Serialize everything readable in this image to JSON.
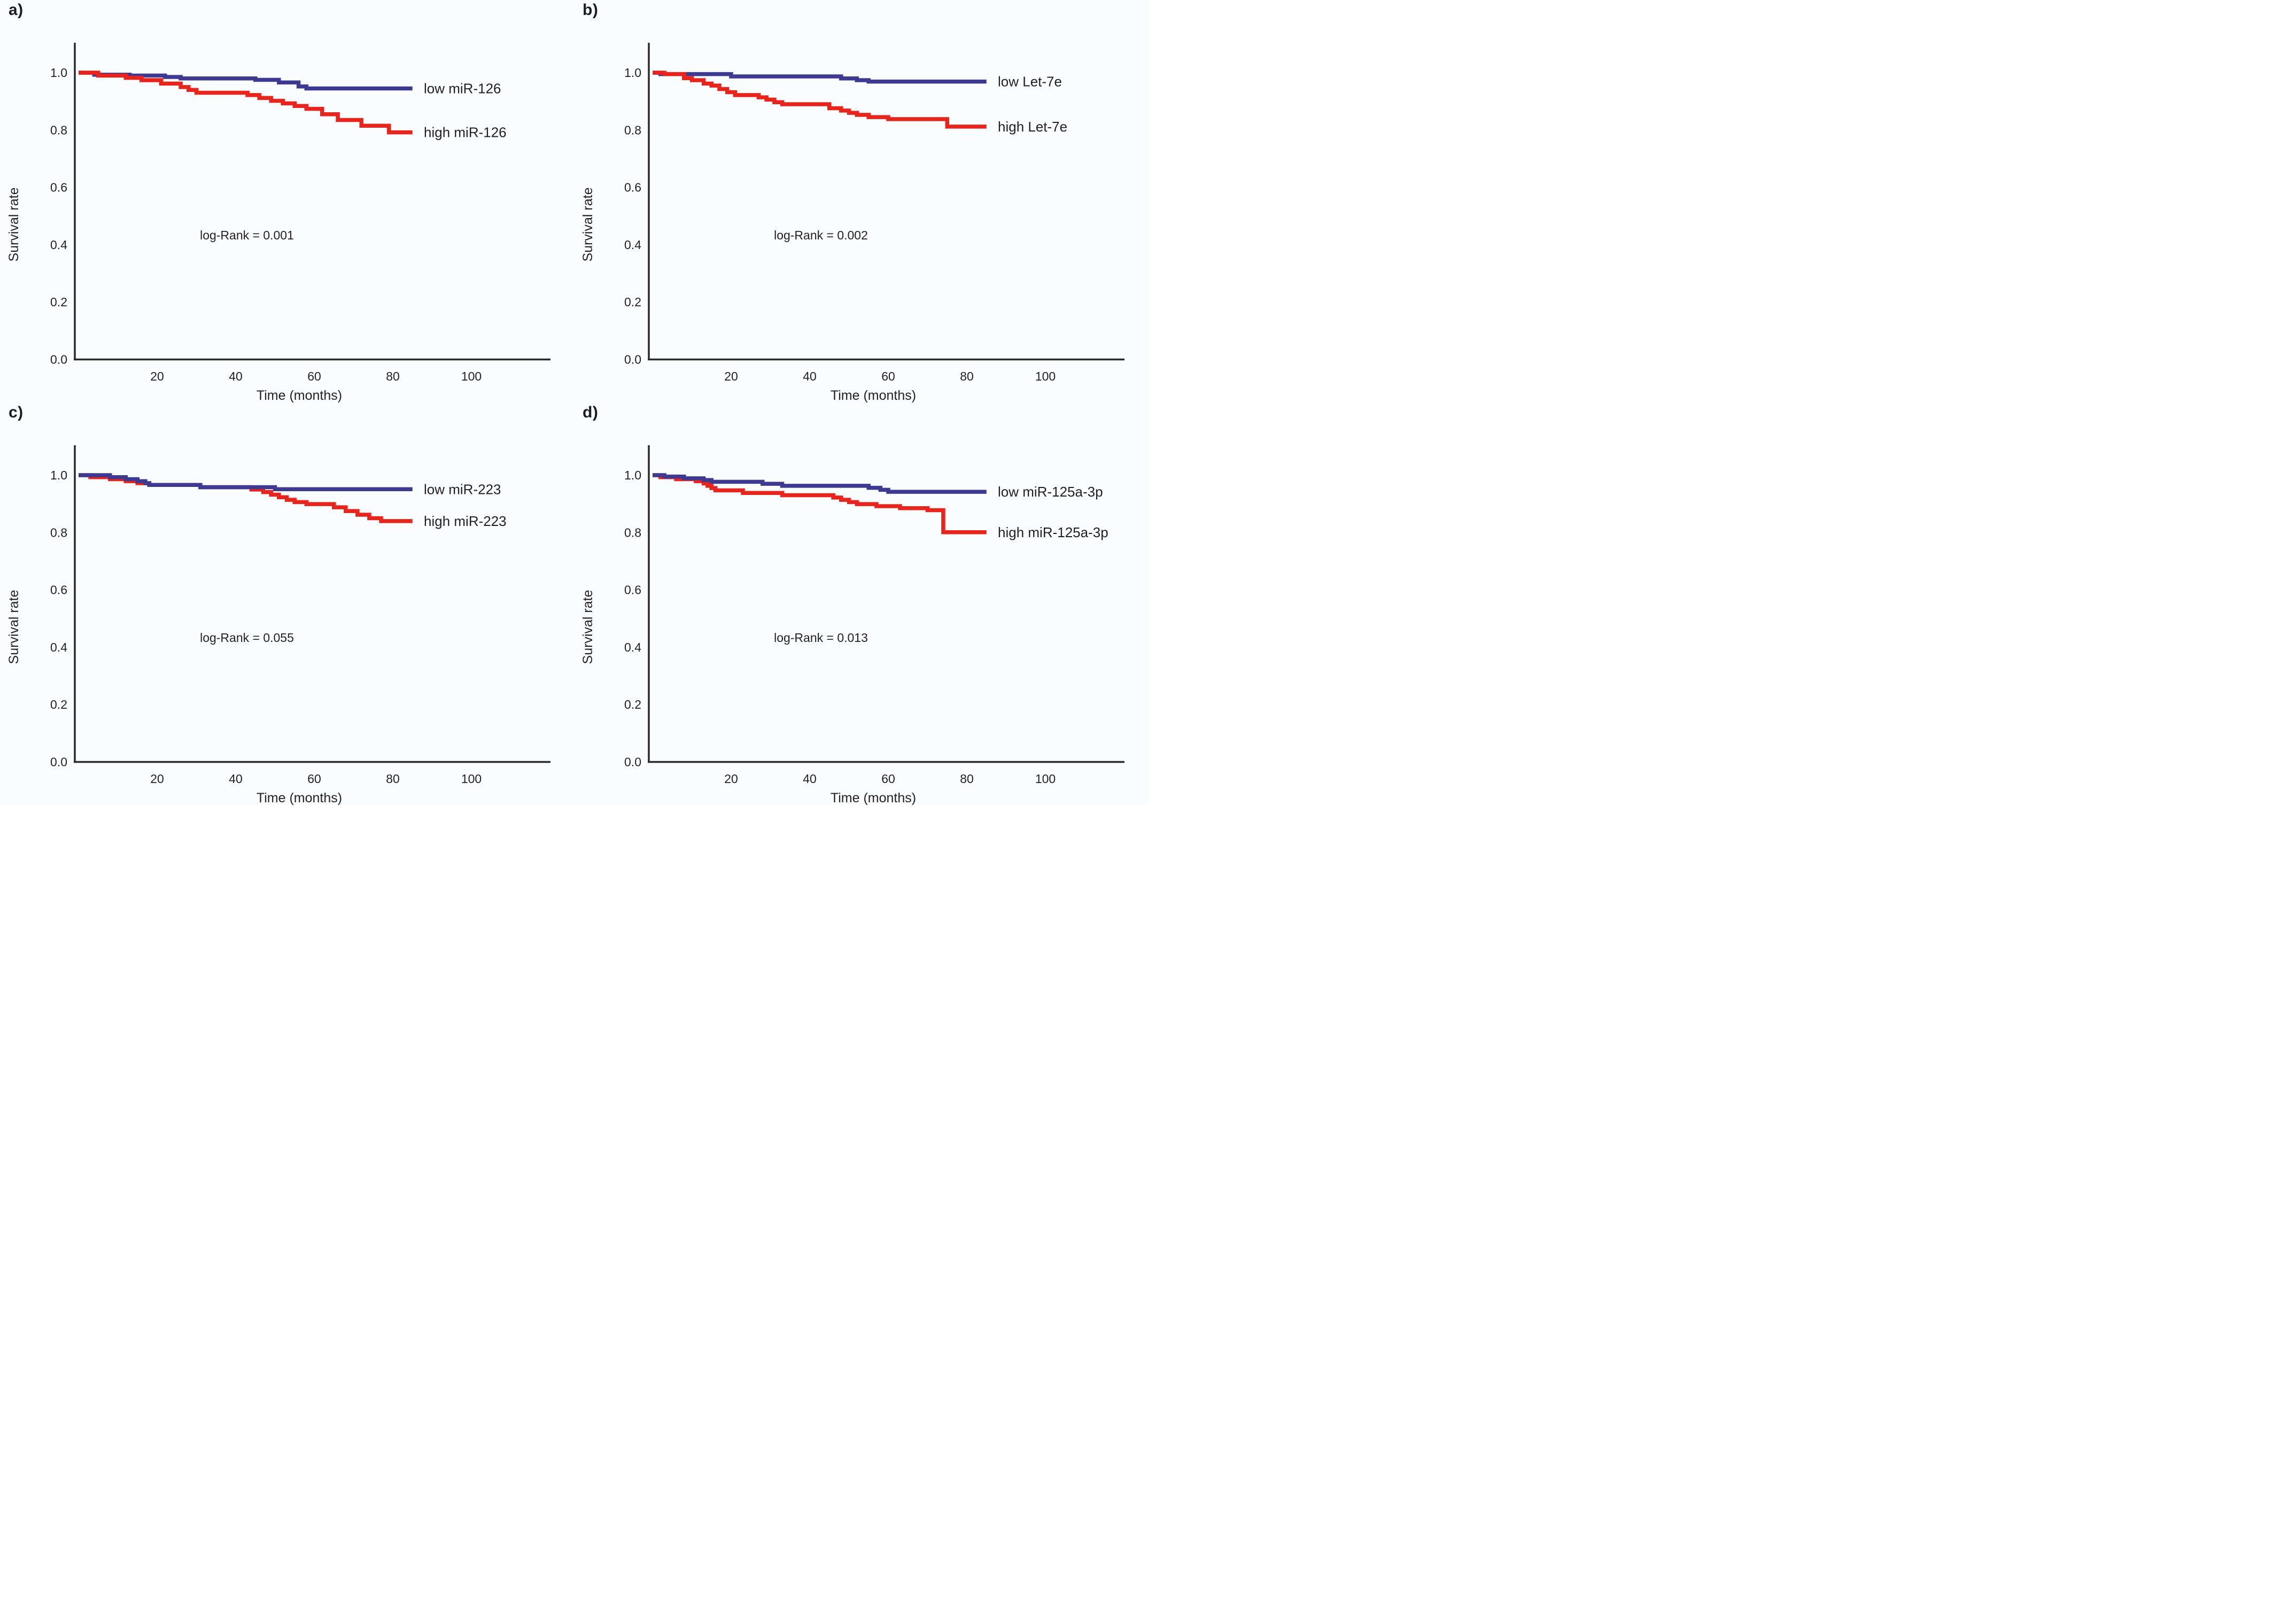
{
  "figure": {
    "background": "#f9fdff",
    "text_color": "#231f20",
    "axis_color": "#2b2b2b"
  },
  "colors": {
    "low": "#3e3a92",
    "high": "#e8251c"
  },
  "axes": {
    "ylabel": "Survival rate",
    "xlabel": "Time (months)",
    "x_ticks": [
      20,
      40,
      60,
      80,
      100
    ],
    "y_ticks": [
      "1.0",
      "0.8",
      "0.6",
      "0.4",
      "0.2",
      "0.0"
    ],
    "y_tick_values": [
      1.0,
      0.8,
      0.6,
      0.4,
      0.2,
      0.0
    ],
    "x_range_months": [
      0,
      110
    ],
    "y_range": [
      0.0,
      1.0
    ],
    "grid": false,
    "legend_position": "right-of-curves"
  },
  "chart_data": [
    {
      "panel": "a)",
      "type": "line",
      "subtype": "kaplan_meier_step",
      "log_rank_label": "log-Rank = 0.001",
      "xlabel": "Time (months)",
      "ylabel": "Survival rate",
      "series": [
        {
          "name": "low miR-126",
          "group": "low",
          "end_t": 85,
          "points": [
            [
              0,
              1.0
            ],
            [
              4,
              0.993
            ],
            [
              13,
              0.99
            ],
            [
              22,
              0.985
            ],
            [
              26,
              0.98
            ],
            [
              45,
              0.975
            ],
            [
              51,
              0.966
            ],
            [
              56,
              0.952
            ],
            [
              58,
              0.945
            ]
          ]
        },
        {
          "name": "high miR-126",
          "group": "high",
          "end_t": 85,
          "points": [
            [
              0,
              1.0
            ],
            [
              5,
              0.99
            ],
            [
              12,
              0.982
            ],
            [
              16,
              0.974
            ],
            [
              21,
              0.962
            ],
            [
              26,
              0.95
            ],
            [
              28,
              0.94
            ],
            [
              30,
              0.93
            ],
            [
              43,
              0.922
            ],
            [
              46,
              0.912
            ],
            [
              49,
              0.902
            ],
            [
              52,
              0.893
            ],
            [
              55,
              0.884
            ],
            [
              58,
              0.874
            ],
            [
              62,
              0.855
            ],
            [
              66,
              0.835
            ],
            [
              72,
              0.815
            ],
            [
              79,
              0.792
            ]
          ]
        }
      ]
    },
    {
      "panel": "b)",
      "type": "line",
      "subtype": "kaplan_meier_step",
      "log_rank_label": "log-Rank = 0.002",
      "xlabel": "Time (months)",
      "ylabel": "Survival rate",
      "series": [
        {
          "name": "low Let-7e",
          "group": "low",
          "end_t": 85,
          "points": [
            [
              0,
              1.0
            ],
            [
              2,
              0.995
            ],
            [
              20,
              0.987
            ],
            [
              48,
              0.98
            ],
            [
              52,
              0.974
            ],
            [
              55,
              0.969
            ]
          ]
        },
        {
          "name": "high Let-7e",
          "group": "high",
          "end_t": 85,
          "points": [
            [
              0,
              1.0
            ],
            [
              3,
              0.995
            ],
            [
              8,
              0.981
            ],
            [
              10,
              0.974
            ],
            [
              13,
              0.962
            ],
            [
              15,
              0.955
            ],
            [
              17,
              0.943
            ],
            [
              19,
              0.932
            ],
            [
              21,
              0.922
            ],
            [
              27,
              0.914
            ],
            [
              29,
              0.906
            ],
            [
              31,
              0.897
            ],
            [
              33,
              0.89
            ],
            [
              45,
              0.876
            ],
            [
              48,
              0.868
            ],
            [
              50,
              0.86
            ],
            [
              52,
              0.853
            ],
            [
              55,
              0.845
            ],
            [
              60,
              0.838
            ],
            [
              75,
              0.812
            ]
          ]
        }
      ]
    },
    {
      "panel": "c)",
      "type": "line",
      "subtype": "kaplan_meier_step",
      "log_rank_label": "log-Rank = 0.055",
      "xlabel": "Time (months)",
      "ylabel": "Survival rate",
      "series": [
        {
          "name": "high miR-223",
          "group": "high",
          "end_t": 85,
          "points": [
            [
              0,
              1.0
            ],
            [
              3,
              0.993
            ],
            [
              8,
              0.986
            ],
            [
              12,
              0.979
            ],
            [
              15,
              0.972
            ],
            [
              18,
              0.966
            ],
            [
              31,
              0.958
            ],
            [
              44,
              0.95
            ],
            [
              47,
              0.941
            ],
            [
              49,
              0.932
            ],
            [
              51,
              0.923
            ],
            [
              53,
              0.914
            ],
            [
              55,
              0.906
            ],
            [
              58,
              0.899
            ],
            [
              65,
              0.888
            ],
            [
              68,
              0.875
            ],
            [
              71,
              0.862
            ],
            [
              74,
              0.85
            ],
            [
              77,
              0.84
            ]
          ]
        },
        {
          "name": "low miR-223",
          "group": "low",
          "end_t": 85,
          "points": [
            [
              0,
              1.0
            ],
            [
              8,
              0.993
            ],
            [
              12,
              0.986
            ],
            [
              15,
              0.979
            ],
            [
              17,
              0.972
            ],
            [
              18,
              0.966
            ],
            [
              31,
              0.958
            ],
            [
              50,
              0.951
            ]
          ]
        }
      ]
    },
    {
      "panel": "d)",
      "type": "line",
      "subtype": "kaplan_meier_step",
      "log_rank_label": "log-Rank = 0.013",
      "xlabel": "Time (months)",
      "ylabel": "Survival rate",
      "series": [
        {
          "name": "high miR-125a-3p",
          "group": "high",
          "end_t": 85,
          "points": [
            [
              0,
              1.0
            ],
            [
              2,
              0.993
            ],
            [
              6,
              0.986
            ],
            [
              11,
              0.979
            ],
            [
              13,
              0.971
            ],
            [
              14,
              0.963
            ],
            [
              15,
              0.955
            ],
            [
              16,
              0.947
            ],
            [
              23,
              0.938
            ],
            [
              33,
              0.93
            ],
            [
              46,
              0.922
            ],
            [
              48,
              0.914
            ],
            [
              50,
              0.906
            ],
            [
              52,
              0.899
            ],
            [
              57,
              0.892
            ],
            [
              63,
              0.885
            ],
            [
              70,
              0.878
            ],
            [
              74,
              0.801
            ]
          ]
        },
        {
          "name": "low miR-125a-3p",
          "group": "low",
          "end_t": 85,
          "points": [
            [
              0,
              1.0
            ],
            [
              3,
              0.995
            ],
            [
              8,
              0.989
            ],
            [
              13,
              0.983
            ],
            [
              15,
              0.977
            ],
            [
              28,
              0.97
            ],
            [
              33,
              0.963
            ],
            [
              55,
              0.956
            ],
            [
              58,
              0.949
            ],
            [
              60,
              0.942
            ]
          ]
        }
      ]
    }
  ]
}
